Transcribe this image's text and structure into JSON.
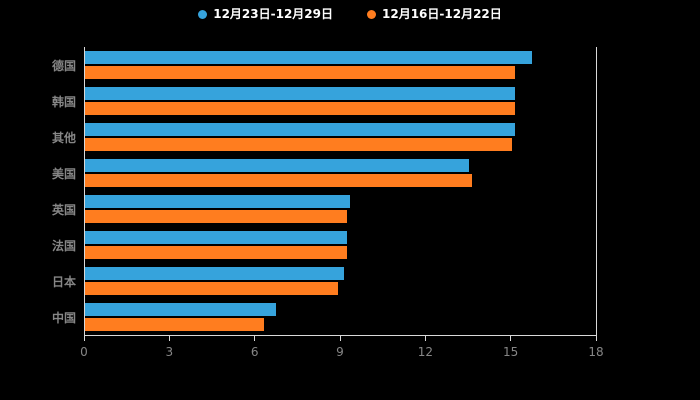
{
  "chart_data": {
    "type": "bar",
    "orientation": "horizontal",
    "title": "",
    "xlabel": "",
    "ylabel": "",
    "xlim": [
      0,
      18
    ],
    "x_ticks": [
      0,
      3,
      6,
      9,
      12,
      15,
      18
    ],
    "grid": "axis-lines-only",
    "legend_position": "top-center",
    "background_color": "#000000",
    "axis_line_color": "#d9d9d9",
    "label_color": "#868686",
    "legend_text_color": "#ffffff",
    "categories": [
      "德国",
      "韩国",
      "其他",
      "美国",
      "英国",
      "法国",
      "日本",
      "中国"
    ],
    "series": [
      {
        "name": "12月23日-12月29日",
        "color": "#36a3dc",
        "values": [
          15.7,
          15.1,
          15.1,
          13.5,
          9.3,
          9.2,
          9.1,
          6.7
        ]
      },
      {
        "name": "12月16日-12月22日",
        "color": "#ff7d1f",
        "values": [
          15.1,
          15.1,
          15.0,
          13.6,
          9.2,
          9.2,
          8.9,
          6.3
        ]
      }
    ]
  }
}
